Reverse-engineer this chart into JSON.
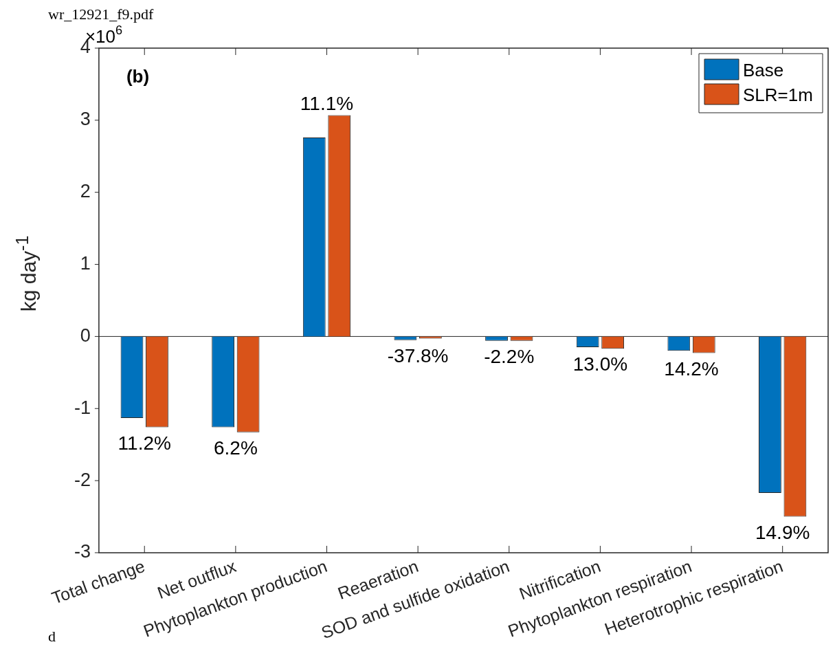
{
  "chart_data": {
    "type": "bar",
    "ylabel": "kg day$^{-1}$",
    "categories": [
      "Total change",
      "Net outflux",
      "Phytoplankton production",
      "Reaeration",
      "SOD and sulfide oxidation",
      "Nitrification",
      "Phytoplankton respiration",
      "Heterotrophic respiration"
    ],
    "series": [
      {
        "name": "Base",
        "color": "#0072bd",
        "values": [
          -1.13,
          -1.26,
          2.76,
          -0.05,
          -0.06,
          -0.15,
          -0.2,
          -2.17
        ]
      },
      {
        "name": "SLR=1m",
        "color": "#d95319",
        "values": [
          -1.26,
          -1.33,
          3.07,
          -0.03,
          -0.06,
          -0.17,
          -0.23,
          -2.5
        ]
      }
    ],
    "ref_lines": [
      {
        "axis": "y",
        "value": 0,
        "color": "#262626"
      }
    ],
    "ylim": [
      -3,
      4
    ],
    "yticks": [
      -3,
      -2,
      -1,
      0,
      1,
      2,
      3,
      4
    ],
    "grid": false,
    "legend": "top right",
    "annotations": [
      "(b)",
      "×10$^{6}$",
      "wr_12921_f9.pdf",
      "d",
      {
        "text": "11.2%",
        "x": "Total change",
        "y": -1.26
      },
      {
        "text": "6.2%",
        "x": "Net outflux",
        "y": -1.33
      },
      {
        "text": "11.1%",
        "x": "Phytoplankton production",
        "y": 3.07
      },
      {
        "text": "-37.8%",
        "x": "Reaeration",
        "y": -0.05
      },
      {
        "text": "-2.2%",
        "x": "SOD and sulfide oxidation",
        "y": -0.06
      },
      {
        "text": "13.0%",
        "x": "Nitrification",
        "y": -0.17
      },
      {
        "text": "14.2%",
        "x": "Phytoplankton respiration",
        "y": -0.23
      },
      {
        "text": "14.9%",
        "x": "Heterotrophic respiration",
        "y": -2.5
      }
    ]
  }
}
